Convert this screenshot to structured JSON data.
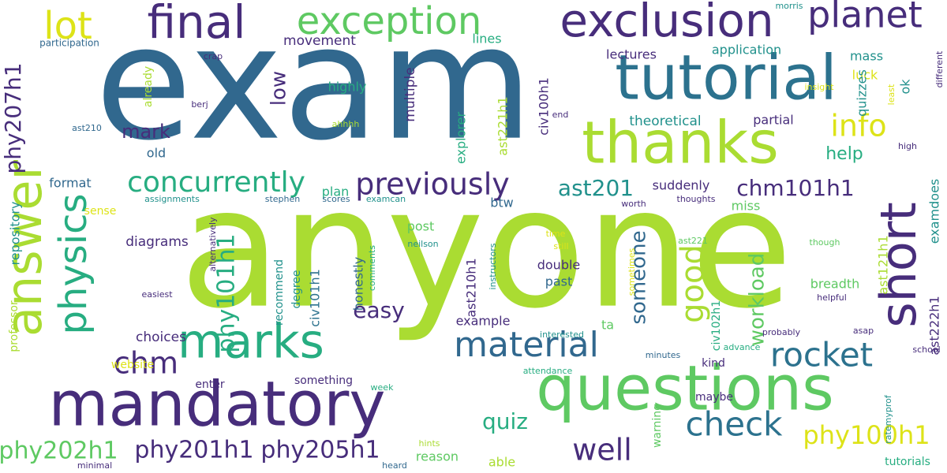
{
  "cloud": {
    "palette": {
      "dark_purple": "#440154",
      "indigo": "#472d7b",
      "blue": "#31688e",
      "steel_blue": "#2c728e",
      "teal": "#21918c",
      "green_teal": "#27ad81",
      "green": "#5ec962",
      "lime": "#aadc32",
      "yellow": "#dde318"
    },
    "words": [
      {
        "text": "exam",
        "color": "blue"
      },
      {
        "text": "anyone",
        "color": "lime"
      },
      {
        "text": "tutorial",
        "color": "steel_blue"
      },
      {
        "text": "thanks",
        "color": "lime"
      },
      {
        "text": "questions",
        "color": "green"
      },
      {
        "text": "mandatory",
        "color": "indigo"
      },
      {
        "text": "exclusion",
        "color": "indigo"
      },
      {
        "text": "final",
        "color": "indigo"
      },
      {
        "text": "exception",
        "color": "green"
      },
      {
        "text": "answer",
        "color": "lime"
      },
      {
        "text": "marks",
        "color": "green_teal"
      },
      {
        "text": "short",
        "color": "indigo"
      },
      {
        "text": "physics",
        "color": "green_teal"
      },
      {
        "text": "planet",
        "color": "indigo"
      },
      {
        "text": "lot",
        "color": "yellow"
      },
      {
        "text": "material",
        "color": "blue"
      },
      {
        "text": "rocket",
        "color": "steel_blue"
      },
      {
        "text": "check",
        "color": "steel_blue"
      },
      {
        "text": "previously",
        "color": "indigo"
      },
      {
        "text": "concurrently",
        "color": "green_teal"
      },
      {
        "text": "info",
        "color": "yellow"
      },
      {
        "text": "good",
        "color": "lime"
      },
      {
        "text": "chm",
        "color": "indigo"
      },
      {
        "text": "well",
        "color": "indigo"
      },
      {
        "text": "phy100h1",
        "color": "yellow"
      },
      {
        "text": "phy201h1",
        "color": "indigo"
      },
      {
        "text": "phy205h1",
        "color": "indigo"
      },
      {
        "text": "phy202h1",
        "color": "green"
      },
      {
        "text": "phy101h1",
        "color": "green_teal"
      },
      {
        "text": "phy207h1",
        "color": "indigo"
      },
      {
        "text": "ast201",
        "color": "teal"
      },
      {
        "text": "chm101h1",
        "color": "indigo"
      },
      {
        "text": "workload",
        "color": "green"
      },
      {
        "text": "someone",
        "color": "blue"
      },
      {
        "text": "easy",
        "color": "indigo"
      },
      {
        "text": "quiz",
        "color": "green_teal"
      },
      {
        "text": "mark",
        "color": "indigo"
      },
      {
        "text": "low",
        "color": "indigo"
      },
      {
        "text": "help",
        "color": "green_teal"
      },
      {
        "text": "movement",
        "color": "indigo"
      },
      {
        "text": "lines",
        "color": "green_teal"
      },
      {
        "text": "mass",
        "color": "teal"
      },
      {
        "text": "application",
        "color": "teal"
      },
      {
        "text": "lectures",
        "color": "indigo"
      },
      {
        "text": "luck",
        "color": "yellow"
      },
      {
        "text": "ok",
        "color": "teal"
      },
      {
        "text": "quizzes",
        "color": "teal"
      },
      {
        "text": "ast221h1",
        "color": "lime"
      },
      {
        "text": "civ100h1",
        "color": "indigo"
      },
      {
        "text": "multiple",
        "color": "indigo"
      },
      {
        "text": "explorer",
        "color": "green_teal"
      },
      {
        "text": "theoretical",
        "color": "teal"
      },
      {
        "text": "partial",
        "color": "indigo"
      },
      {
        "text": "highly",
        "color": "green_teal"
      },
      {
        "text": "already",
        "color": "lime"
      },
      {
        "text": "old",
        "color": "blue"
      },
      {
        "text": "format",
        "color": "blue"
      },
      {
        "text": "sense",
        "color": "yellow"
      },
      {
        "text": "plan",
        "color": "green_teal"
      },
      {
        "text": "post",
        "color": "green"
      },
      {
        "text": "btw",
        "color": "blue"
      },
      {
        "text": "suddenly",
        "color": "indigo"
      },
      {
        "text": "miss",
        "color": "green"
      },
      {
        "text": "examdoes",
        "color": "teal"
      },
      {
        "text": "ast121h1",
        "color": "lime"
      },
      {
        "text": "ast222h1",
        "color": "indigo"
      },
      {
        "text": "ast210h1",
        "color": "indigo"
      },
      {
        "text": "civ101h1",
        "color": "steel_blue"
      },
      {
        "text": "civ102h1",
        "color": "green_teal"
      },
      {
        "text": "degree",
        "color": "teal"
      },
      {
        "text": "recommend",
        "color": "teal"
      },
      {
        "text": "honestly",
        "color": "blue"
      },
      {
        "text": "diagrams",
        "color": "indigo"
      },
      {
        "text": "repository",
        "color": "teal"
      },
      {
        "text": "double",
        "color": "indigo"
      },
      {
        "text": "past",
        "color": "blue"
      },
      {
        "text": "breadth",
        "color": "green"
      },
      {
        "text": "example",
        "color": "indigo"
      },
      {
        "text": "ta",
        "color": "green"
      },
      {
        "text": "kind",
        "color": "indigo"
      },
      {
        "text": "choices",
        "color": "indigo"
      },
      {
        "text": "professor",
        "color": "lime"
      },
      {
        "text": "website",
        "color": "yellow"
      },
      {
        "text": "enter",
        "color": "indigo"
      },
      {
        "text": "something",
        "color": "indigo"
      },
      {
        "text": "maybe",
        "color": "indigo"
      },
      {
        "text": "warning",
        "color": "green"
      },
      {
        "text": "reason",
        "color": "green"
      },
      {
        "text": "able",
        "color": "lime"
      },
      {
        "text": "tutorials",
        "color": "green_teal"
      },
      {
        "text": "morris",
        "color": "teal"
      },
      {
        "text": "participation",
        "color": "blue"
      },
      {
        "text": "crap",
        "color": "indigo"
      },
      {
        "text": "berj",
        "color": "indigo"
      },
      {
        "text": "ast210",
        "color": "blue"
      },
      {
        "text": "ahhhh",
        "color": "lime"
      },
      {
        "text": "end",
        "color": "indigo"
      },
      {
        "text": "insight",
        "color": "yellow"
      },
      {
        "text": "least",
        "color": "yellow"
      },
      {
        "text": "different",
        "color": "indigo"
      },
      {
        "text": "high",
        "color": "indigo"
      },
      {
        "text": "assignments",
        "color": "teal"
      },
      {
        "text": "stephen",
        "color": "blue"
      },
      {
        "text": "scores",
        "color": "blue"
      },
      {
        "text": "examcan",
        "color": "teal"
      },
      {
        "text": "worth",
        "color": "indigo"
      },
      {
        "text": "thoughts",
        "color": "indigo"
      },
      {
        "text": "neilson",
        "color": "teal"
      },
      {
        "text": "time",
        "color": "yellow"
      },
      {
        "text": "still",
        "color": "yellow"
      },
      {
        "text": "ast221",
        "color": "green"
      },
      {
        "text": "though",
        "color": "green"
      },
      {
        "text": "alternatively",
        "color": "indigo"
      },
      {
        "text": "comments",
        "color": "green_teal"
      },
      {
        "text": "instructors",
        "color": "teal"
      },
      {
        "text": "sometimes",
        "color": "yellow"
      },
      {
        "text": "easiest",
        "color": "indigo"
      },
      {
        "text": "helpful",
        "color": "indigo"
      },
      {
        "text": "probably",
        "color": "indigo"
      },
      {
        "text": "asap",
        "color": "indigo"
      },
      {
        "text": "interested",
        "color": "teal"
      },
      {
        "text": "minutes",
        "color": "blue"
      },
      {
        "text": "advance",
        "color": "green_teal"
      },
      {
        "text": "attendance",
        "color": "green_teal"
      },
      {
        "text": "school",
        "color": "indigo"
      },
      {
        "text": "ratemyprof",
        "color": "teal"
      },
      {
        "text": "week",
        "color": "green_teal"
      },
      {
        "text": "hints",
        "color": "lime"
      },
      {
        "text": "heard",
        "color": "blue"
      },
      {
        "text": "minimal",
        "color": "indigo"
      }
    ]
  }
}
